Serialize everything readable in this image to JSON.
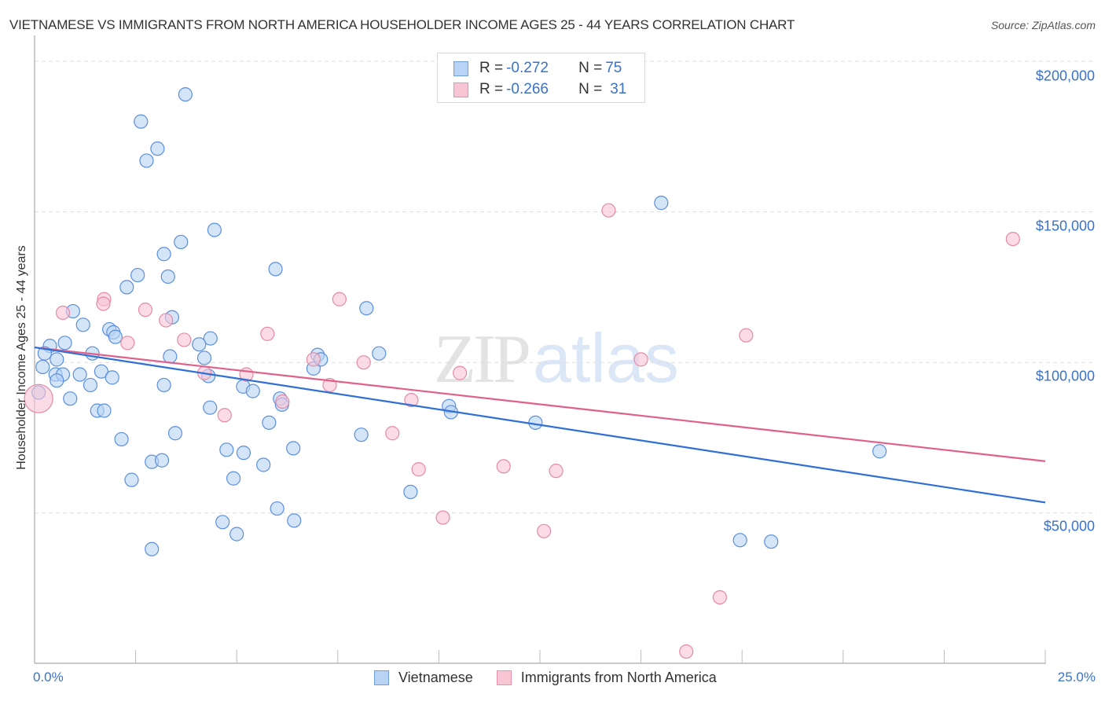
{
  "header": {
    "title": "VIETNAMESE VS IMMIGRANTS FROM NORTH AMERICA HOUSEHOLDER INCOME AGES 25 - 44 YEARS CORRELATION CHART",
    "source": "Source: ZipAtlas.com"
  },
  "watermark": {
    "zip": "ZIP",
    "atlas": "atlas"
  },
  "legend_top": {
    "rows": [
      {
        "r_label": "R = ",
        "r_value": "-0.272",
        "n_label": "N = ",
        "n_value": "75"
      },
      {
        "r_label": "R = ",
        "r_value": "-0.266",
        "n_label": "N = ",
        "n_value": "31"
      }
    ]
  },
  "legend_bottom": {
    "items": [
      {
        "label": "Vietnamese"
      },
      {
        "label": "Immigrants from North America"
      }
    ]
  },
  "axes": {
    "ylabel": "Householder Income Ages 25 - 44 years",
    "x_min_label": "0.0%",
    "x_max_label": "25.0%",
    "y_ticks": [
      "$200,000",
      "$150,000",
      "$100,000",
      "$50,000"
    ]
  },
  "colors": {
    "series1_fill": "#b9d3f4",
    "series1_stroke": "#5b8fdd",
    "series1_line": "#2f6fd6",
    "series2_fill": "#f8c5d5",
    "series2_stroke": "#e58aa6",
    "series2_line": "#e0608a",
    "tick_label": "#3a72c8",
    "grid": "#dddddd"
  },
  "chart_data": {
    "type": "scatter",
    "title": "VIETNAMESE VS IMMIGRANTS FROM NORTH AMERICA HOUSEHOLDER INCOME AGES 25 - 44 YEARS CORRELATION CHART",
    "xlabel": "",
    "ylabel": "Householder Income Ages 25 - 44 years",
    "xlim": [
      0,
      25
    ],
    "ylim": [
      0,
      205000
    ],
    "x_unit": "%",
    "y_ticks": [
      50000,
      100000,
      150000,
      200000
    ],
    "x_ticks_count": 11,
    "grid": true,
    "legend_position": "top-center and bottom",
    "series": [
      {
        "name": "Vietnamese",
        "R": -0.272,
        "N": 75,
        "trend": {
          "x": [
            0,
            25
          ],
          "y": [
            105000,
            53500
          ]
        },
        "points": [
          [
            3.73,
            189000
          ],
          [
            2.63,
            180000
          ],
          [
            3.04,
            171000
          ],
          [
            2.77,
            167000
          ],
          [
            3.62,
            140000
          ],
          [
            4.45,
            144000
          ],
          [
            3.2,
            136000
          ],
          [
            3.3,
            128500
          ],
          [
            5.96,
            131000
          ],
          [
            2.55,
            129000
          ],
          [
            2.28,
            125000
          ],
          [
            8.21,
            118000
          ],
          [
            15.5,
            153000
          ],
          [
            0.95,
            117000
          ],
          [
            1.2,
            112500
          ],
          [
            1.85,
            111000
          ],
          [
            1.95,
            110000
          ],
          [
            2.0,
            108500
          ],
          [
            0.75,
            106500
          ],
          [
            0.38,
            105500
          ],
          [
            0.25,
            103000
          ],
          [
            0.55,
            101000
          ],
          [
            1.43,
            103000
          ],
          [
            3.35,
            102000
          ],
          [
            4.2,
            101500
          ],
          [
            4.35,
            108000
          ],
          [
            4.07,
            106000
          ],
          [
            3.4,
            115000
          ],
          [
            0.2,
            98500
          ],
          [
            0.52,
            96000
          ],
          [
            0.7,
            96000
          ],
          [
            0.55,
            94000
          ],
          [
            1.12,
            96000
          ],
          [
            1.65,
            97000
          ],
          [
            1.92,
            95000
          ],
          [
            0.88,
            88000
          ],
          [
            1.38,
            92500
          ],
          [
            3.2,
            92500
          ],
          [
            4.3,
            95500
          ],
          [
            5.16,
            92000
          ],
          [
            5.4,
            90500
          ],
          [
            6.9,
            98000
          ],
          [
            7.0,
            102500
          ],
          [
            6.07,
            88000
          ],
          [
            6.12,
            86000
          ],
          [
            0.1,
            90000
          ],
          [
            1.55,
            84000
          ],
          [
            1.72,
            84000
          ],
          [
            4.34,
            85000
          ],
          [
            10.25,
            85500
          ],
          [
            10.3,
            83500
          ],
          [
            5.8,
            80000
          ],
          [
            12.39,
            80000
          ],
          [
            2.15,
            74500
          ],
          [
            3.48,
            76500
          ],
          [
            8.08,
            76000
          ],
          [
            6.4,
            71500
          ],
          [
            4.75,
            71000
          ],
          [
            5.17,
            70000
          ],
          [
            2.9,
            67000
          ],
          [
            3.15,
            67500
          ],
          [
            5.66,
            66000
          ],
          [
            2.4,
            61000
          ],
          [
            4.92,
            61500
          ],
          [
            9.3,
            57000
          ],
          [
            6.0,
            51500
          ],
          [
            4.65,
            47000
          ],
          [
            6.42,
            47500
          ],
          [
            5.0,
            43000
          ],
          [
            2.9,
            38000
          ],
          [
            20.9,
            70500
          ],
          [
            17.45,
            41000
          ],
          [
            18.22,
            40500
          ],
          [
            8.52,
            103000
          ],
          [
            7.08,
            101000
          ]
        ]
      },
      {
        "name": "Immigrants from North America",
        "R": -0.266,
        "N": 31,
        "trend": {
          "x": [
            0,
            25
          ],
          "y": [
            105000,
            67200
          ]
        },
        "points": [
          [
            0.1,
            88000,
            "large"
          ],
          [
            0.7,
            116500
          ],
          [
            1.72,
            121000
          ],
          [
            1.7,
            119500
          ],
          [
            2.74,
            117500
          ],
          [
            2.3,
            106500
          ],
          [
            3.25,
            114000
          ],
          [
            3.7,
            107500
          ],
          [
            4.2,
            96500
          ],
          [
            5.24,
            96000
          ],
          [
            5.76,
            109500
          ],
          [
            4.7,
            82500
          ],
          [
            6.9,
            101000
          ],
          [
            7.3,
            92500
          ],
          [
            7.54,
            121000
          ],
          [
            8.14,
            100000
          ],
          [
            6.13,
            87000
          ],
          [
            9.32,
            87500
          ],
          [
            8.85,
            76500
          ],
          [
            10.52,
            96500
          ],
          [
            9.5,
            64500
          ],
          [
            11.6,
            65500
          ],
          [
            12.9,
            64000
          ],
          [
            10.1,
            48500
          ],
          [
            12.6,
            44000
          ],
          [
            14.2,
            150500
          ],
          [
            15.0,
            101000
          ],
          [
            17.6,
            109000
          ],
          [
            24.2,
            141000
          ],
          [
            16.12,
            4000
          ],
          [
            16.95,
            22000
          ]
        ]
      }
    ]
  }
}
